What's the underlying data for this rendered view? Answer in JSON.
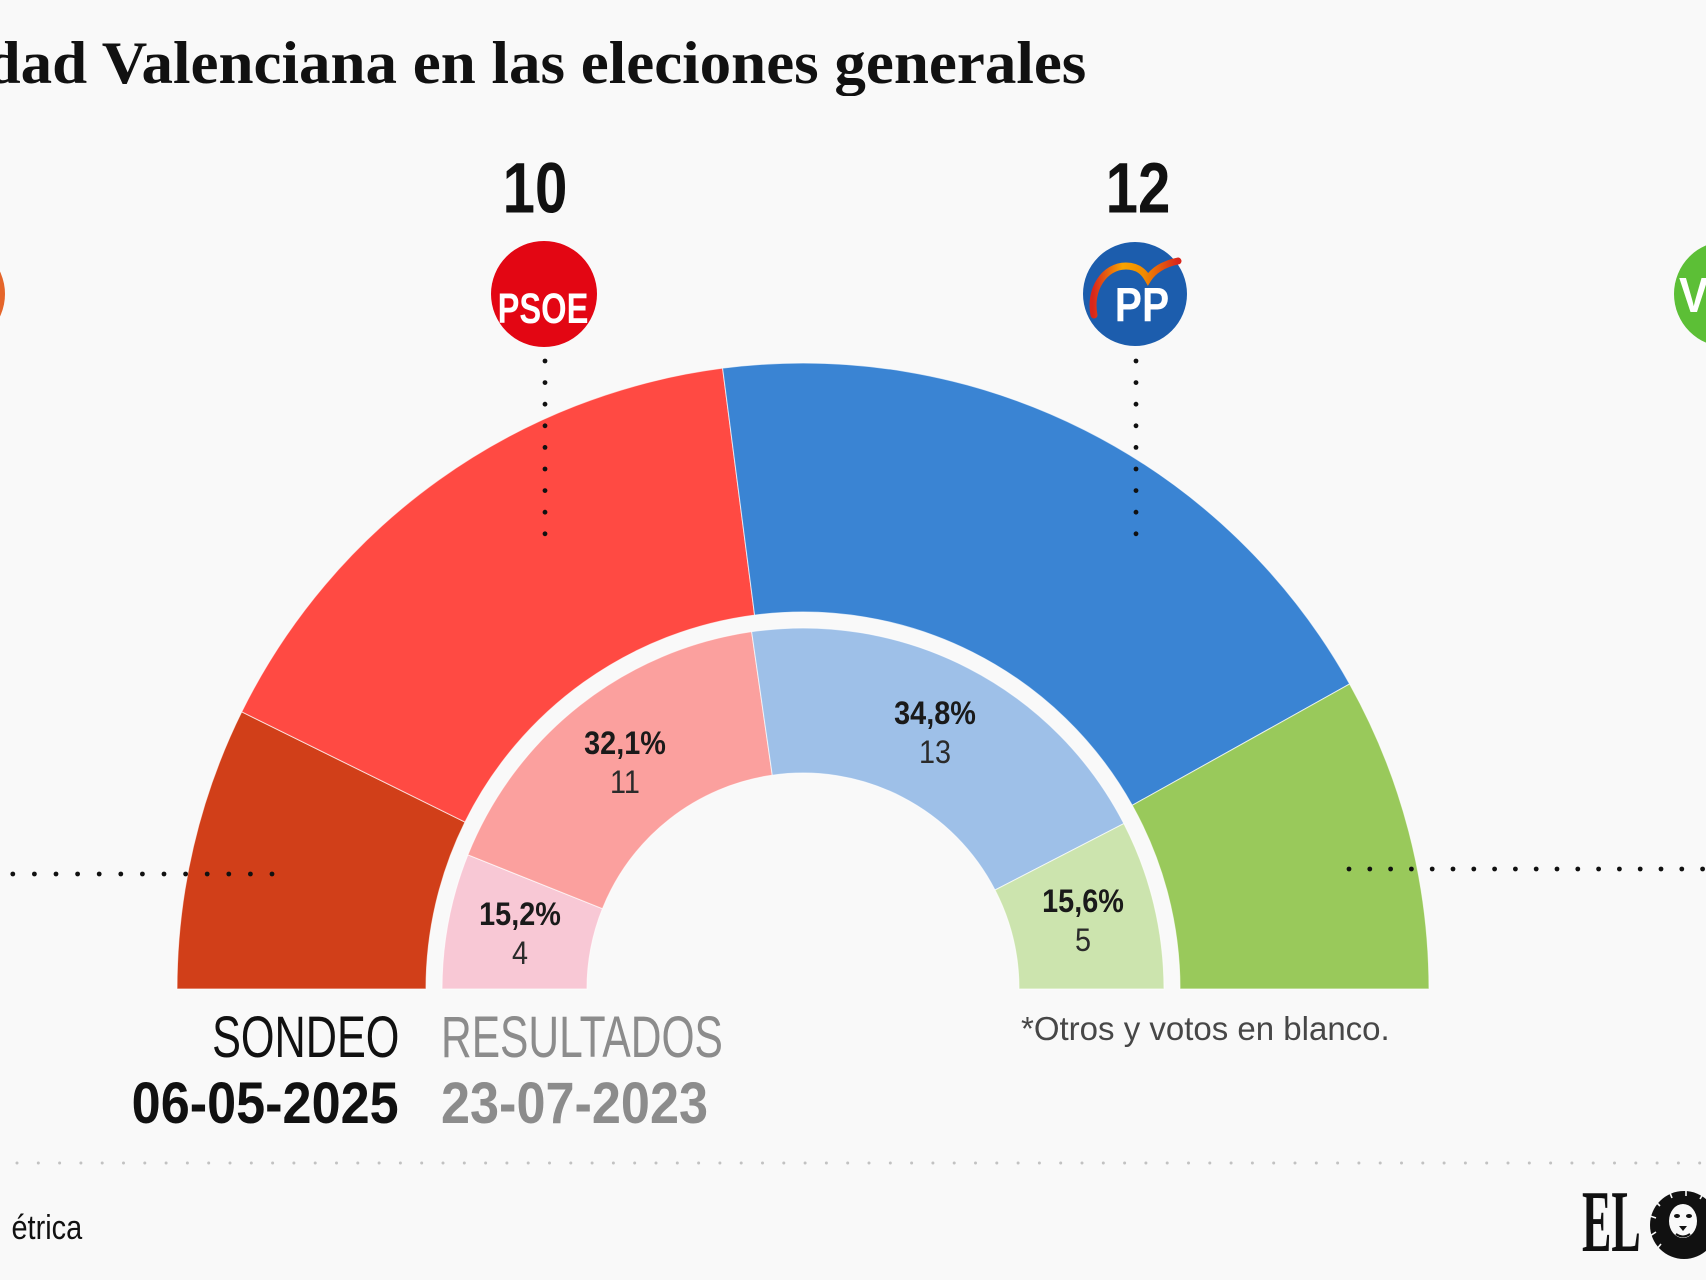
{
  "title": "dad Valenciana en las eleciones generales",
  "logos": {
    "orange_party": {
      "color": "#E5652A"
    },
    "psoe": {
      "text": "PSOE",
      "color": "#E30613"
    },
    "pp": {
      "text": "PP",
      "color": "#1C5DAD"
    },
    "vox": {
      "text": "V",
      "color": "#5CBF36"
    }
  },
  "chart_data": {
    "type": "pie",
    "shape": "semicircle-donut",
    "rings": [
      {
        "id": "sondeo",
        "label": "SONDEO",
        "date": "06-05-2025",
        "position": "outer",
        "segments": [
          {
            "logo": "orange-party-logo",
            "share_pct": 14.6,
            "color": "#D13F19"
          },
          {
            "party": "PSOE",
            "seats": 10,
            "share_pct": 31.3,
            "color": "#FF4A43"
          },
          {
            "party": "PP",
            "seats": 12,
            "share_pct": 37.9,
            "color": "#3A84D3"
          },
          {
            "logo": "vox-logo",
            "share_pct": 16.2,
            "color": "#99C95B"
          }
        ]
      },
      {
        "id": "resultados",
        "label": "RESULTADOS",
        "date": "23-07-2023",
        "position": "inner",
        "segments": [
          {
            "vote_pct": 15.2,
            "vote_pct_label": "15,2%",
            "seats": 4,
            "color": "#F8C8D5"
          },
          {
            "vote_pct": 32.1,
            "vote_pct_label": "32,1%",
            "seats": 11,
            "color": "#FBA09E"
          },
          {
            "vote_pct": 34.8,
            "vote_pct_label": "34,8%",
            "seats": 13,
            "color": "#9EC0E8"
          },
          {
            "vote_pct": 15.6,
            "vote_pct_label": "15,6%",
            "seats": 5,
            "color": "#CCE4AE"
          }
        ]
      }
    ],
    "note": "*Otros y votos en blanco."
  },
  "footer": {
    "source_fragment": "étrica",
    "brand_text": "EL",
    "brand_icon": "lion-icon"
  }
}
